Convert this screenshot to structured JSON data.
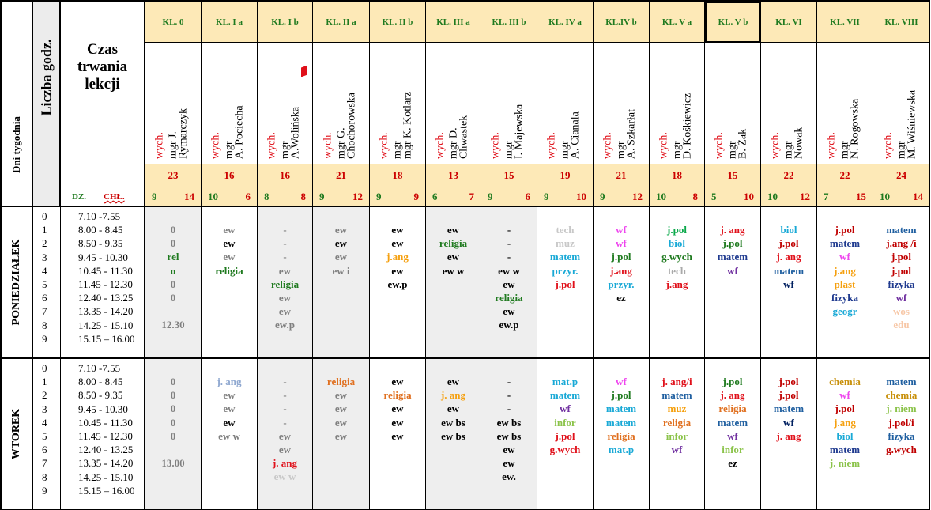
{
  "header": {
    "days_label": "Dni tygodnia",
    "hours_label": "Liczba godz.",
    "czas_title": "Czas trwania lekcji",
    "dz_label": "DZ.",
    "chl_label": "CHŁ."
  },
  "classes": [
    {
      "name": "KL. 0",
      "wych": "wych.",
      "mgr": "mgr J.",
      "teacher": "Rymarczyk",
      "total": "23",
      "dz": "9",
      "chl": "14"
    },
    {
      "name": "KL.  I a",
      "wych": "wych.",
      "mgr": "mgr",
      "teacher": "A. Pociecha",
      "total": "16",
      "dz": "10",
      "chl": "6"
    },
    {
      "name": "KL.  I b",
      "wych": "wych.",
      "mgr": "mgr",
      "teacher": "A.Wolińska",
      "total": "16",
      "dz": "8",
      "chl": "8"
    },
    {
      "name": "KL. II a",
      "wych": "wych.",
      "mgr": "mgr  G.",
      "teacher": "Chochorowska",
      "total": "21",
      "dz": "9",
      "chl": "12"
    },
    {
      "name": "KL. II b",
      "wych": "wych.",
      "mgr": "mgr",
      "teacher": "mgr K. Kotlarz",
      "total": "18",
      "dz": "9",
      "chl": "9"
    },
    {
      "name": "KL. III a",
      "wych": "wych.",
      "mgr": "mgr  D.",
      "teacher": "Chwastek",
      "total": "13",
      "dz": "6",
      "chl": "7"
    },
    {
      "name": "KL. III b",
      "wych": "wych.",
      "mgr": "mgr",
      "teacher": "I. Majewska",
      "total": "15",
      "dz": "9",
      "chl": "6"
    },
    {
      "name": "KL. IV a",
      "wych": "wych.",
      "mgr": "mgr",
      "teacher": "A.   Cianala",
      "total": "19",
      "dz": "9",
      "chl": "10"
    },
    {
      "name": "KL.IV b",
      "wych": "wych.",
      "mgr": "mgr",
      "teacher": "A. Szkarłat",
      "total": "21",
      "dz": "9",
      "chl": "12"
    },
    {
      "name": "KL. V a",
      "wych": "wych.",
      "mgr": "mgr",
      "teacher": "D. Kośkiewicz",
      "total": "18",
      "dz": "10",
      "chl": "8"
    },
    {
      "name": "KL. V b",
      "wych": "wych.",
      "mgr": "mgr",
      "teacher": "B. Żak",
      "total": "15",
      "dz": "5",
      "chl": "10"
    },
    {
      "name": "KL. VI",
      "wych": "wych.",
      "mgr": "mgr",
      "teacher": "Nowak",
      "total": "22",
      "dz": "10",
      "chl": "12"
    },
    {
      "name": "KL. VII",
      "wych": "wych.",
      "mgr": "mgr",
      "teacher": "N. Rogowska",
      "total": "22",
      "dz": "7",
      "chl": "15"
    },
    {
      "name": "KL. VIII",
      "wych": "wych.",
      "mgr": "mgr",
      "teacher": "M. Wiśniewska",
      "total": "24",
      "dz": "10",
      "chl": "14"
    }
  ],
  "hours": [
    "0",
    "1",
    "2",
    "3",
    "4",
    "5",
    "6",
    "7",
    "8",
    "9"
  ],
  "times": [
    "7.10 -7.55",
    "8.00 - 8.45",
    "8.50 - 9.35",
    "9.45 - 10.30",
    "10.45 - 11.30",
    "11.45 - 12.30",
    "12.40 - 13.25",
    "13.35 - 14.20",
    "14.25 - 15.10",
    "15.15 – 16.00"
  ],
  "colors": {
    "red": "#e0101a",
    "green": "#1f7a1f",
    "grey": "#7f7f7f",
    "cyan": "#19a9d6",
    "magenta": "#ee44ee",
    "orange": "#f5a00f",
    "blue": "#1f3a8f",
    "purple": "#7030a0",
    "lime": "#8bc34a",
    "navy": "#002060",
    "olive": "#7f7f00",
    "header_bg": "#fde9b7"
  },
  "days": [
    {
      "name": "PONIEDZIAŁEK",
      "columns": [
        [
          {
            "t": "0",
            "c": "#7f7f7f"
          },
          {
            "t": "0",
            "c": "#7f7f7f"
          },
          {
            "t": "rel",
            "c": "#1f7a1f"
          },
          {
            "t": "o",
            "c": "#1f7a1f"
          },
          {
            "t": "0",
            "c": "#7f7f7f"
          },
          {
            "t": "0",
            "c": "#7f7f7f"
          },
          {
            "t": ""
          },
          {
            "t": "12.30",
            "c": "#7f7f7f"
          }
        ],
        [
          {
            "t": "ew",
            "c": "#7f7f7f"
          },
          {
            "t": "ew",
            "c": "#000"
          },
          {
            "t": "ew",
            "c": "#7f7f7f"
          },
          {
            "t": "religia",
            "c": "#1f7a1f"
          }
        ],
        [
          {
            "t": "-",
            "c": "#7f7f7f"
          },
          {
            "t": "-",
            "c": "#7f7f7f"
          },
          {
            "t": "-",
            "c": "#7f7f7f"
          },
          {
            "t": "ew",
            "c": "#7f7f7f"
          },
          {
            "t": "religia",
            "c": "#1f7a1f"
          },
          {
            "t": "ew",
            "c": "#7f7f7f"
          },
          {
            "t": "ew",
            "c": "#7f7f7f"
          },
          {
            "t": "ew.p",
            "c": "#7f7f7f"
          }
        ],
        [
          {
            "t": "ew",
            "c": "#7f7f7f"
          },
          {
            "t": "ew",
            "c": "#000"
          },
          {
            "t": "ew",
            "c": "#7f7f7f"
          },
          {
            "t": "ew i",
            "c": "#7f7f7f"
          }
        ],
        [
          {
            "t": "ew",
            "c": "#000"
          },
          {
            "t": "ew",
            "c": "#000"
          },
          {
            "t": "j.ang",
            "c": "#f5a00f"
          },
          {
            "t": "ew",
            "c": "#000"
          },
          {
            "t": "ew.p",
            "c": "#000"
          }
        ],
        [
          {
            "t": "ew",
            "c": "#000"
          },
          {
            "t": "religia",
            "c": "#1f7a1f"
          },
          {
            "t": "ew",
            "c": "#000"
          },
          {
            "t": "ew w",
            "c": "#000"
          }
        ],
        [
          {
            "t": "-",
            "c": "#000"
          },
          {
            "t": "-",
            "c": "#000"
          },
          {
            "t": "-",
            "c": "#000"
          },
          {
            "t": "ew w",
            "c": "#000"
          },
          {
            "t": "ew",
            "c": "#000"
          },
          {
            "t": "religia",
            "c": "#1f7a1f"
          },
          {
            "t": "ew",
            "c": "#000"
          },
          {
            "t": "ew.p",
            "c": "#000"
          }
        ],
        [
          {
            "t": "tech",
            "c": "#c8c8c8"
          },
          {
            "t": "muz",
            "c": "#c8c8c8"
          },
          {
            "t": "matem",
            "c": "#19a9d6"
          },
          {
            "t": "przyr.",
            "c": "#19a9d6"
          },
          {
            "t": "j.pol",
            "c": "#e0101a"
          }
        ],
        [
          {
            "t": "wf",
            "c": "#ee44ee"
          },
          {
            "t": "wf",
            "c": "#ee44ee"
          },
          {
            "t": "j.pol",
            "c": "#1f7a1f"
          },
          {
            "t": "j.ang",
            "c": "#e0101a"
          },
          {
            "t": "przyr.",
            "c": "#19a9d6"
          },
          {
            "t": "ez",
            "c": "#000"
          }
        ],
        [
          {
            "t": "j.pol",
            "c": "#0aa84a"
          },
          {
            "t": "biol",
            "c": "#19a9d6"
          },
          {
            "t": "g.wych",
            "c": "#1f7a1f"
          },
          {
            "t": "tech",
            "c": "#aaaaaa"
          },
          {
            "t": "j.ang",
            "c": "#e0101a"
          }
        ],
        [
          {
            "t": "j. ang",
            "c": "#e0101a"
          },
          {
            "t": "j.pol",
            "c": "#1f7a1f"
          },
          {
            "t": "matem",
            "c": "#1f3a8f"
          },
          {
            "t": "wf",
            "c": "#7030a0"
          }
        ],
        [
          {
            "t": "biol",
            "c": "#19a9d6"
          },
          {
            "t": "j.pol",
            "c": "#c00000"
          },
          {
            "t": "j. ang",
            "c": "#e0101a"
          },
          {
            "t": "matem",
            "c": "#1f5fa0"
          },
          {
            "t": "wf",
            "c": "#002060"
          }
        ],
        [
          {
            "t": "j.pol",
            "c": "#c00000"
          },
          {
            "t": "matem",
            "c": "#1f3a8f"
          },
          {
            "t": "wf",
            "c": "#ee44ee"
          },
          {
            "t": "j.ang",
            "c": "#f5a00f"
          },
          {
            "t": "plast",
            "c": "#f5a00f"
          },
          {
            "t": "fizyka",
            "c": "#1f3a8f"
          },
          {
            "t": "geogr",
            "c": "#19a9d6"
          }
        ],
        [
          {
            "t": "matem",
            "c": "#1f5fa0"
          },
          {
            "t": "j.ang /i",
            "c": "#c00000"
          },
          {
            "t": "j.pol",
            "c": "#c00000"
          },
          {
            "t": "j.pol",
            "c": "#c00000"
          },
          {
            "t": "fizyka",
            "c": "#1f3a8f"
          },
          {
            "t": "wf",
            "c": "#7030a0"
          },
          {
            "t": "wos",
            "c": "#f7c8a8"
          },
          {
            "t": "edu",
            "c": "#f7c8a8"
          }
        ]
      ]
    },
    {
      "name": "WTOREK",
      "columns": [
        [
          {
            "t": "0",
            "c": "#7f7f7f"
          },
          {
            "t": "0",
            "c": "#7f7f7f"
          },
          {
            "t": "0",
            "c": "#7f7f7f"
          },
          {
            "t": "0",
            "c": "#7f7f7f"
          },
          {
            "t": "0",
            "c": "#7f7f7f"
          },
          {
            "t": ""
          },
          {
            "t": "13.00",
            "c": "#7f7f7f"
          }
        ],
        [
          {
            "t": "j. ang",
            "c": "#8fa8d0"
          },
          {
            "t": "ew",
            "c": "#7f7f7f"
          },
          {
            "t": "ew",
            "c": "#7f7f7f"
          },
          {
            "t": "ew",
            "c": "#000"
          },
          {
            "t": "ew w",
            "c": "#7f7f7f"
          }
        ],
        [
          {
            "t": "-",
            "c": "#7f7f7f"
          },
          {
            "t": "-",
            "c": "#7f7f7f"
          },
          {
            "t": "-",
            "c": "#7f7f7f"
          },
          {
            "t": "-",
            "c": "#7f7f7f"
          },
          {
            "t": "ew",
            "c": "#7f7f7f"
          },
          {
            "t": "ew",
            "c": "#7f7f7f"
          },
          {
            "t": "j. ang",
            "c": "#e0101a"
          },
          {
            "t": "ew w",
            "c": "#c8c8c8"
          }
        ],
        [
          {
            "t": "religia",
            "c": "#e07020"
          },
          {
            "t": "ew",
            "c": "#7f7f7f"
          },
          {
            "t": "ew",
            "c": "#7f7f7f"
          },
          {
            "t": "ew",
            "c": "#7f7f7f"
          },
          {
            "t": "ew",
            "c": "#7f7f7f"
          }
        ],
        [
          {
            "t": "ew",
            "c": "#000"
          },
          {
            "t": "religia",
            "c": "#e07020"
          },
          {
            "t": "ew",
            "c": "#000"
          },
          {
            "t": "ew",
            "c": "#000"
          },
          {
            "t": "ew",
            "c": "#000"
          }
        ],
        [
          {
            "t": "ew",
            "c": "#000"
          },
          {
            "t": "j. ang",
            "c": "#f5a00f"
          },
          {
            "t": "ew",
            "c": "#000"
          },
          {
            "t": "ew bs",
            "c": "#000"
          },
          {
            "t": "ew bs",
            "c": "#000"
          }
        ],
        [
          {
            "t": "-",
            "c": "#000"
          },
          {
            "t": "-",
            "c": "#000"
          },
          {
            "t": "-",
            "c": "#000"
          },
          {
            "t": "ew bs",
            "c": "#000"
          },
          {
            "t": "ew bs",
            "c": "#000"
          },
          {
            "t": "ew",
            "c": "#000"
          },
          {
            "t": "ew",
            "c": "#000"
          },
          {
            "t": "ew.",
            "c": "#000"
          }
        ],
        [
          {
            "t": "mat.p",
            "c": "#19a9d6"
          },
          {
            "t": "matem",
            "c": "#19a9d6"
          },
          {
            "t": "wf",
            "c": "#7030a0"
          },
          {
            "t": "infor",
            "c": "#8bc34a"
          },
          {
            "t": "j.pol",
            "c": "#e0101a"
          },
          {
            "t": "g.wych",
            "c": "#e0101a"
          }
        ],
        [
          {
            "t": "wf",
            "c": "#ee44ee"
          },
          {
            "t": "j.pol",
            "c": "#1f7a1f"
          },
          {
            "t": "matem",
            "c": "#19a9d6"
          },
          {
            "t": "matem",
            "c": "#19a9d6"
          },
          {
            "t": "religia",
            "c": "#e07020"
          },
          {
            "t": "mat.p",
            "c": "#19a9d6"
          }
        ],
        [
          {
            "t": "j. ang/i",
            "c": "#e0101a"
          },
          {
            "t": "matem",
            "c": "#1f5fa0"
          },
          {
            "t": "muz",
            "c": "#f5a00f"
          },
          {
            "t": "religia",
            "c": "#e07020"
          },
          {
            "t": "infor",
            "c": "#8bc34a"
          },
          {
            "t": "wf",
            "c": "#7030a0"
          }
        ],
        [
          {
            "t": "j.pol",
            "c": "#1f7a1f"
          },
          {
            "t": "j. ang",
            "c": "#e0101a"
          },
          {
            "t": "religia",
            "c": "#e07020"
          },
          {
            "t": "matem",
            "c": "#1f5fa0"
          },
          {
            "t": "wf",
            "c": "#7030a0"
          },
          {
            "t": "infor",
            "c": "#8bc34a"
          },
          {
            "t": "ez",
            "c": "#000"
          }
        ],
        [
          {
            "t": "j.pol",
            "c": "#c00000"
          },
          {
            "t": "j.pol",
            "c": "#c00000"
          },
          {
            "t": "matem",
            "c": "#1f5fa0"
          },
          {
            "t": "wf",
            "c": "#002060"
          },
          {
            "t": "j. ang",
            "c": "#e0101a"
          }
        ],
        [
          {
            "t": "chemia",
            "c": "#c8900a"
          },
          {
            "t": "wf",
            "c": "#ee44ee"
          },
          {
            "t": "j.pol",
            "c": "#c00000"
          },
          {
            "t": "j.ang",
            "c": "#f5a00f"
          },
          {
            "t": "biol",
            "c": "#19a9d6"
          },
          {
            "t": "matem",
            "c": "#1f3a8f"
          },
          {
            "t": "j. niem",
            "c": "#8bc34a"
          }
        ],
        [
          {
            "t": "matem",
            "c": "#1f5fa0"
          },
          {
            "t": "chemia",
            "c": "#c8900a"
          },
          {
            "t": "j. niem",
            "c": "#8bc34a"
          },
          {
            "t": "j.pol/i",
            "c": "#c00000"
          },
          {
            "t": "fizyka",
            "c": "#1f5fa0"
          },
          {
            "t": "g.wych",
            "c": "#c00000"
          }
        ]
      ]
    }
  ]
}
